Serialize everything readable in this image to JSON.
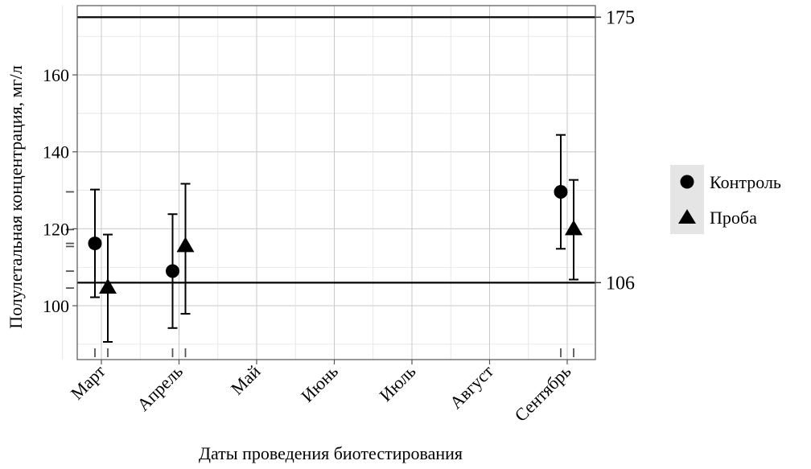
{
  "chart_data": {
    "type": "scatter",
    "title": "",
    "xlabel": "Даты проведения биотестирования",
    "ylabel": "Полулетальная концентрация, мг/л",
    "categories": [
      "Март",
      "Апрель",
      "Май",
      "Июнь",
      "Июль",
      "Август",
      "Сентябрь"
    ],
    "ylim": [
      86,
      178
    ],
    "yticks": [
      100,
      120,
      140,
      160
    ],
    "grid": true,
    "legend_position": "right",
    "reference_lines": [
      {
        "value": 175,
        "label": "175"
      },
      {
        "value": 106,
        "label": "106"
      }
    ],
    "series": [
      {
        "name": "Контроль",
        "marker": "circle",
        "points": [
          {
            "x": "Март",
            "y": 116.2,
            "ymin": 102.2,
            "ymax": 130.2
          },
          {
            "x": "Апрель",
            "y": 109.0,
            "ymin": 94.2,
            "ymax": 123.8
          },
          {
            "x": "Сентябрь",
            "y": 129.6,
            "ymin": 114.8,
            "ymax": 144.4
          }
        ]
      },
      {
        "name": "Проба",
        "marker": "triangle",
        "points": [
          {
            "x": "Март",
            "y": 104.6,
            "ymin": 90.6,
            "ymax": 118.5
          },
          {
            "x": "Апрель",
            "y": 115.4,
            "ymin": 97.9,
            "ymax": 131.7
          },
          {
            "x": "Сентябрь",
            "y": 119.8,
            "ymin": 106.8,
            "ymax": 132.7
          }
        ]
      }
    ]
  }
}
